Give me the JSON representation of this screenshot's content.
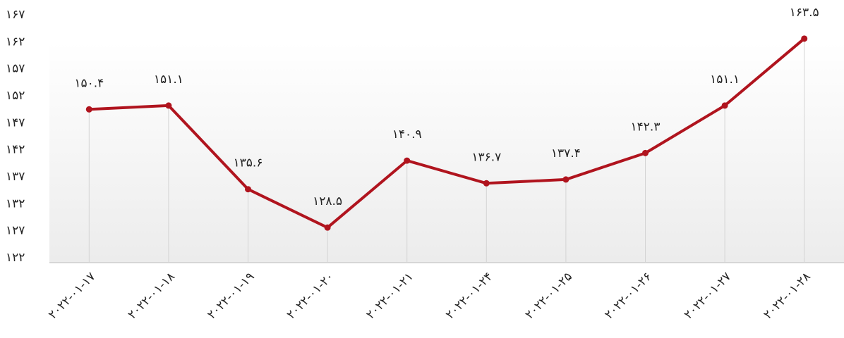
{
  "chart_data": {
    "type": "line",
    "categories": [
      "۲۰۲۲-۰۱-۱۷",
      "۲۰۲۲-۰۱-۱۸",
      "۲۰۲۲-۰۱-۱۹",
      "۲۰۲۲-۰۱-۲۰",
      "۲۰۲۲-۰۱-۲۱",
      "۲۰۲۲-۰۱-۲۴",
      "۲۰۲۲-۰۱-۲۵",
      "۲۰۲۲-۰۱-۲۶",
      "۲۰۲۲-۰۱-۲۷",
      "۲۰۲۲-۰۱-۲۸"
    ],
    "values": [
      150.4,
      151.1,
      135.6,
      128.5,
      140.9,
      136.7,
      137.4,
      142.3,
      151.1,
      163.5
    ],
    "value_labels": [
      "۱۵۰.۴",
      "۱۵۱.۱",
      "۱۳۵.۶",
      "۱۲۸.۵",
      "۱۴۰.۹",
      "۱۳۶.۷",
      "۱۳۷.۴",
      "۱۴۲.۳",
      "۱۵۱.۱",
      "۱۶۳.۵"
    ],
    "color": "#b0141e",
    "ylim": [
      122,
      167
    ],
    "yticks": [
      {
        "value": 122,
        "label": "۱۲۲"
      },
      {
        "value": 127,
        "label": "۱۲۷"
      },
      {
        "value": 132,
        "label": "۱۳۲"
      },
      {
        "value": 137,
        "label": "۱۳۷"
      },
      {
        "value": 142,
        "label": "۱۴۲"
      },
      {
        "value": 147,
        "label": "۱۴۷"
      },
      {
        "value": 152,
        "label": "۱۵۲"
      },
      {
        "value": 157,
        "label": "۱۵۷"
      },
      {
        "value": 162,
        "label": "۱۶۲"
      },
      {
        "value": 167,
        "label": "۱۶۷"
      }
    ]
  }
}
